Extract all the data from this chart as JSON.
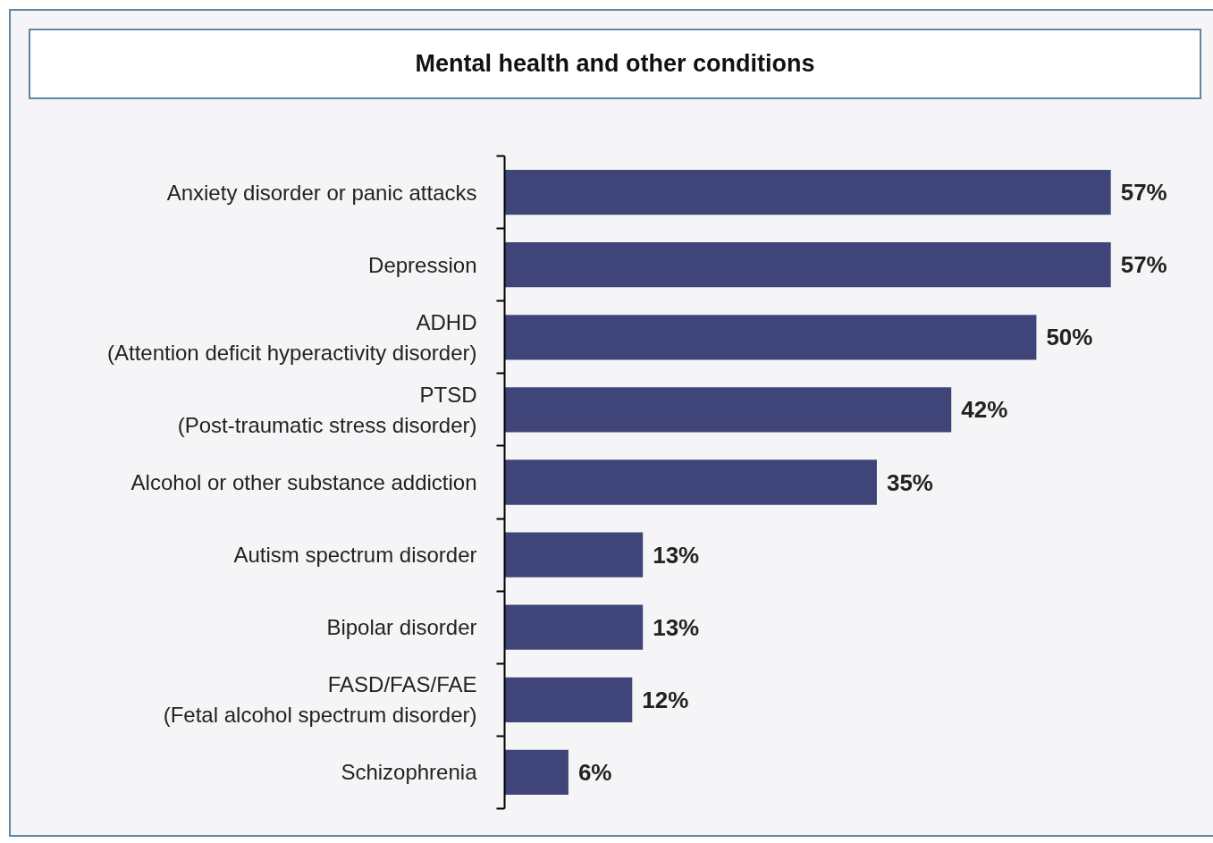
{
  "chart_data": {
    "type": "bar",
    "orientation": "horizontal",
    "title": "Mental health and other conditions",
    "categories": [
      "Anxiety disorder or panic attacks",
      "Depression",
      "ADHD\n(Attention deficit hyperactivity disorder)",
      "PTSD\n(Post-traumatic stress disorder)",
      "Alcohol or other substance addiction",
      "Autism spectrum disorder",
      "Bipolar disorder",
      "FASD/FAS/FAE\n(Fetal alcohol spectrum disorder)",
      "Schizophrenia"
    ],
    "values": [
      57,
      57,
      50,
      42,
      35,
      13,
      13,
      12,
      6
    ],
    "color": "#3f4479",
    "value_labels": [
      "57%",
      "57%",
      "50%",
      "42%",
      "35%",
      "13%",
      "13%",
      "12%",
      "6%"
    ],
    "tick_labels": "y",
    "grid": false
  }
}
